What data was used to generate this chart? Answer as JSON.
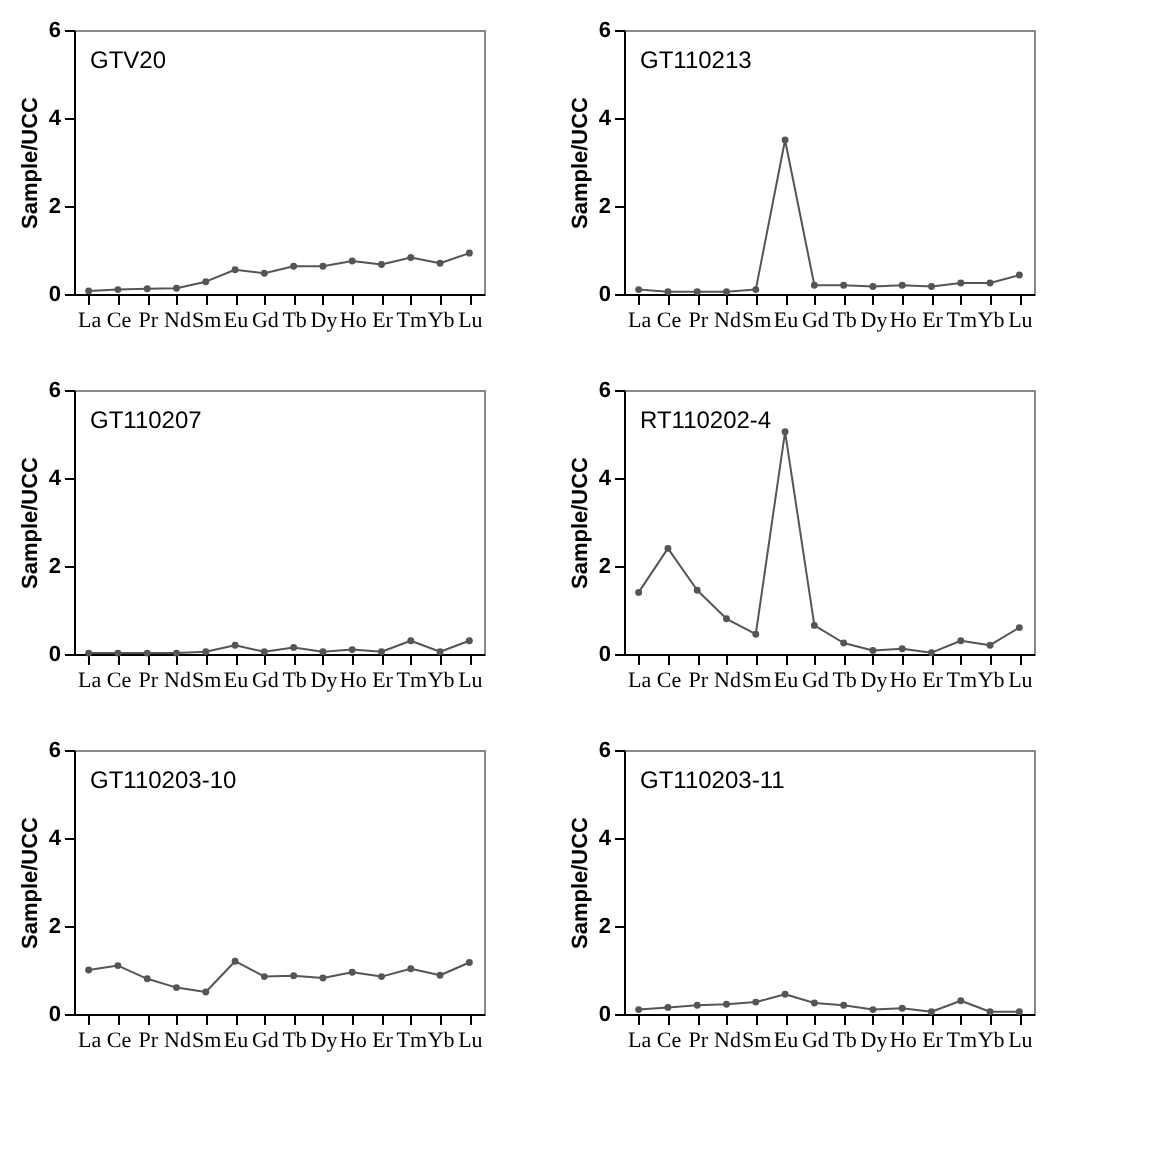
{
  "chart_data": [
    {
      "type": "line",
      "title": "GTV20",
      "ylabel": "Sample/UCC",
      "categories": [
        "La",
        "Ce",
        "Pr",
        "Nd",
        "Sm",
        "Eu",
        "Gd",
        "Tb",
        "Dy",
        "Ho",
        "Er",
        "Tm",
        "Yb",
        "Lu"
      ],
      "values": [
        0.07,
        0.1,
        0.12,
        0.13,
        0.28,
        0.55,
        0.47,
        0.63,
        0.63,
        0.75,
        0.67,
        0.83,
        0.7,
        0.93
      ],
      "color": "#555555",
      "ylim": [
        0,
        6
      ],
      "yticks": [
        0,
        2,
        4,
        6
      ],
      "marker": "circle",
      "grid": false
    },
    {
      "type": "line",
      "title": "GT110213",
      "ylabel": "Sample/UCC",
      "categories": [
        "La",
        "Ce",
        "Pr",
        "Nd",
        "Sm",
        "Eu",
        "Gd",
        "Tb",
        "Dy",
        "Ho",
        "Er",
        "Tm",
        "Yb",
        "Lu"
      ],
      "values": [
        0.1,
        0.05,
        0.05,
        0.05,
        0.1,
        3.5,
        0.2,
        0.2,
        0.17,
        0.2,
        0.17,
        0.25,
        0.25,
        0.43
      ],
      "color": "#555555",
      "ylim": [
        0,
        6
      ],
      "yticks": [
        0,
        2,
        4,
        6
      ],
      "marker": "circle",
      "grid": false
    },
    {
      "type": "line",
      "title": "GT110207",
      "ylabel": "Sample/UCC",
      "categories": [
        "La",
        "Ce",
        "Pr",
        "Nd",
        "Sm",
        "Eu",
        "Gd",
        "Tb",
        "Dy",
        "Ho",
        "Er",
        "Tm",
        "Yb",
        "Lu"
      ],
      "values": [
        0.02,
        0.02,
        0.02,
        0.02,
        0.05,
        0.2,
        0.05,
        0.15,
        0.05,
        0.1,
        0.05,
        0.3,
        0.05,
        0.3
      ],
      "color": "#555555",
      "ylim": [
        0,
        6
      ],
      "yticks": [
        0,
        2,
        4,
        6
      ],
      "marker": "circle",
      "grid": false
    },
    {
      "type": "line",
      "title": "RT110202-4",
      "ylabel": "Sample/UCC",
      "categories": [
        "La",
        "Ce",
        "Pr",
        "Nd",
        "Sm",
        "Eu",
        "Gd",
        "Tb",
        "Dy",
        "Ho",
        "Er",
        "Tm",
        "Yb",
        "Lu"
      ],
      "values": [
        1.4,
        2.4,
        1.45,
        0.8,
        0.45,
        5.05,
        0.65,
        0.25,
        0.08,
        0.12,
        0.03,
        0.3,
        0.2,
        0.6
      ],
      "color": "#555555",
      "ylim": [
        0,
        6
      ],
      "yticks": [
        0,
        2,
        4,
        6
      ],
      "marker": "circle",
      "grid": false
    },
    {
      "type": "line",
      "title": "GT110203-10",
      "ylabel": "Sample/UCC",
      "categories": [
        "La",
        "Ce",
        "Pr",
        "Nd",
        "Sm",
        "Eu",
        "Gd",
        "Tb",
        "Dy",
        "Ho",
        "Er",
        "Tm",
        "Yb",
        "Lu"
      ],
      "values": [
        1.0,
        1.1,
        0.8,
        0.6,
        0.5,
        1.2,
        0.85,
        0.87,
        0.82,
        0.95,
        0.85,
        1.03,
        0.88,
        1.17
      ],
      "color": "#555555",
      "ylim": [
        0,
        6
      ],
      "yticks": [
        0,
        2,
        4,
        6
      ],
      "marker": "circle",
      "grid": false
    },
    {
      "type": "line",
      "title": "GT110203-11",
      "ylabel": "Sample/UCC",
      "categories": [
        "La",
        "Ce",
        "Pr",
        "Nd",
        "Sm",
        "Eu",
        "Gd",
        "Tb",
        "Dy",
        "Ho",
        "Er",
        "Tm",
        "Yb",
        "Lu"
      ],
      "values": [
        0.1,
        0.15,
        0.2,
        0.22,
        0.27,
        0.45,
        0.25,
        0.2,
        0.1,
        0.13,
        0.05,
        0.3,
        0.05,
        0.05
      ],
      "color": "#555555",
      "ylim": [
        0,
        6
      ],
      "yticks": [
        0,
        2,
        4,
        6
      ],
      "marker": "circle",
      "grid": false
    }
  ]
}
